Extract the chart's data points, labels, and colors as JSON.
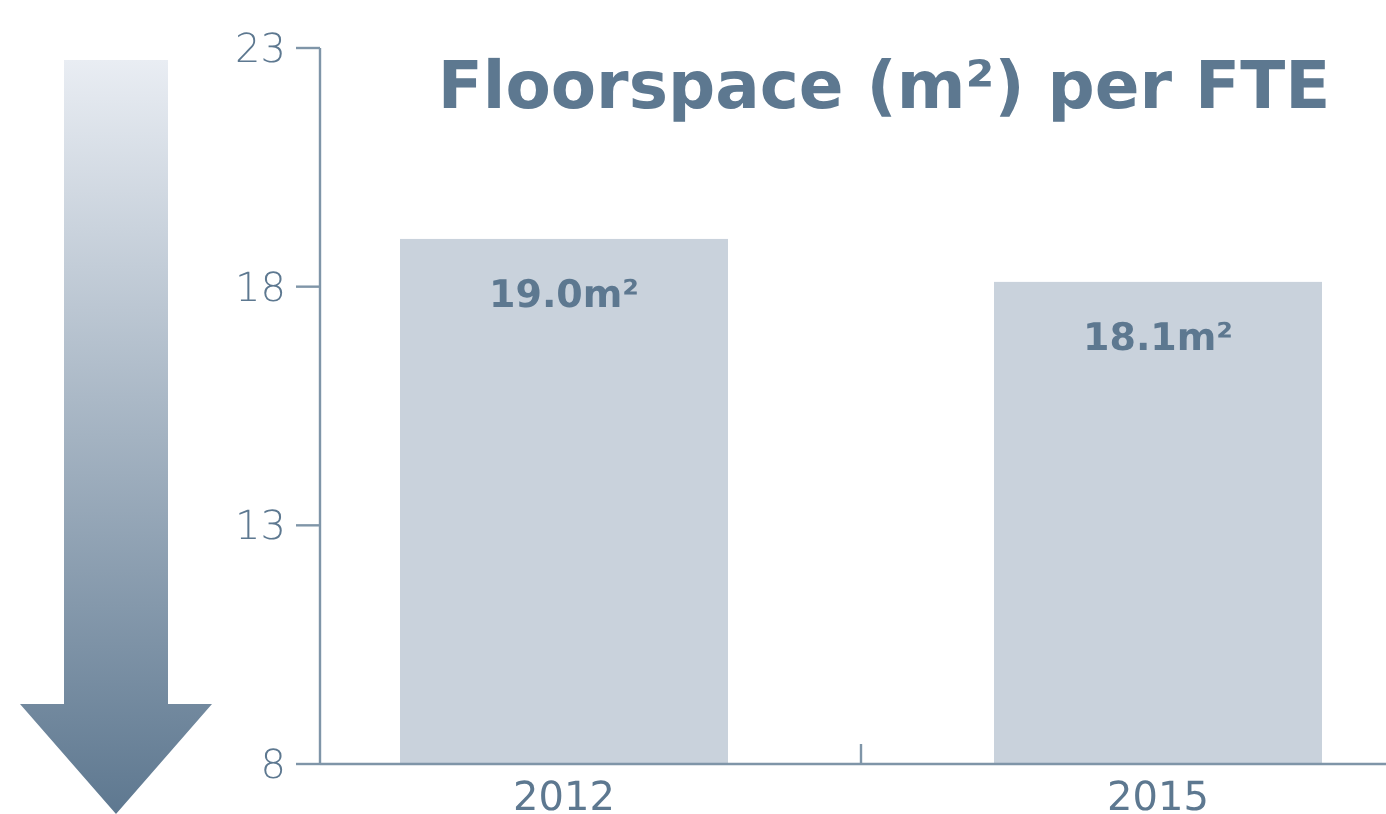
{
  "chart_data": {
    "type": "bar",
    "title": "Floorspace (m²) per FTE",
    "categories": [
      "2012",
      "2015"
    ],
    "values": [
      19.0,
      18.1
    ],
    "color": "#c9d2dc",
    "ylim": [
      8,
      23
    ],
    "yticks": [
      8,
      13,
      18,
      23
    ],
    "value_labels": [
      "19.0m²",
      "18.1m²"
    ]
  }
}
